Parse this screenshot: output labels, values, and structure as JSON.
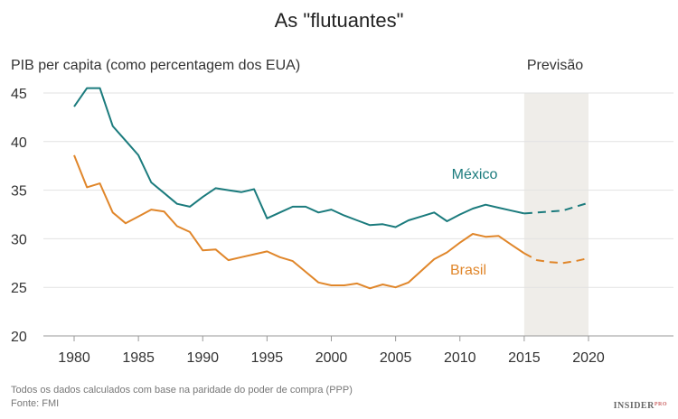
{
  "chart_data": {
    "type": "line",
    "title": "As \"flutuantes\"",
    "ylabel": "PIB per capita (como percentagem dos EUA)",
    "xlim": [
      1980,
      2020
    ],
    "ylim": [
      20,
      45
    ],
    "xticks": [
      1980,
      1985,
      1990,
      1995,
      2000,
      2005,
      2010,
      2015,
      2020
    ],
    "yticks": [
      20,
      25,
      30,
      35,
      40,
      45
    ],
    "grid": "horizontal",
    "forecast": {
      "label": "Previsão",
      "from": 2015,
      "to": 2020,
      "color": "#efede9"
    },
    "x": [
      1980,
      1981,
      1982,
      1983,
      1984,
      1985,
      1986,
      1987,
      1988,
      1989,
      1990,
      1991,
      1992,
      1993,
      1994,
      1995,
      1996,
      1997,
      1998,
      1999,
      2000,
      2001,
      2002,
      2003,
      2004,
      2005,
      2006,
      2007,
      2008,
      2009,
      2010,
      2011,
      2012,
      2013,
      2014,
      2015,
      2016,
      2017,
      2018,
      2019,
      2020
    ],
    "series": [
      {
        "name": "México",
        "color": "#1b7b7d",
        "values": [
          43.6,
          45.5,
          45.5,
          41.6,
          40.1,
          38.6,
          35.8,
          34.7,
          33.6,
          33.3,
          34.3,
          35.2,
          35.0,
          34.8,
          35.1,
          32.1,
          32.7,
          33.3,
          33.3,
          32.7,
          33.0,
          32.4,
          31.9,
          31.4,
          31.5,
          31.2,
          31.9,
          32.3,
          32.7,
          31.8,
          32.5,
          33.1,
          33.5,
          33.2,
          32.9,
          32.6,
          32.7,
          32.8,
          32.9,
          33.3,
          33.7
        ]
      },
      {
        "name": "Brasil",
        "color": "#e0862a",
        "values": [
          38.6,
          35.3,
          35.7,
          32.7,
          31.6,
          32.3,
          33.0,
          32.8,
          31.3,
          30.7,
          28.8,
          28.9,
          27.8,
          28.1,
          28.4,
          28.7,
          28.1,
          27.7,
          26.6,
          25.5,
          25.2,
          25.2,
          25.4,
          24.9,
          25.3,
          25.0,
          25.5,
          26.7,
          27.9,
          28.6,
          29.6,
          30.5,
          30.2,
          30.3,
          29.4,
          28.5,
          27.8,
          27.6,
          27.5,
          27.7,
          28.0
        ]
      }
    ],
    "footnote": "Todos os dados calculados com base na paridade do poder de compra (PPP)",
    "source": "Fonte: FMI"
  },
  "logo": "INSIDERPRO"
}
